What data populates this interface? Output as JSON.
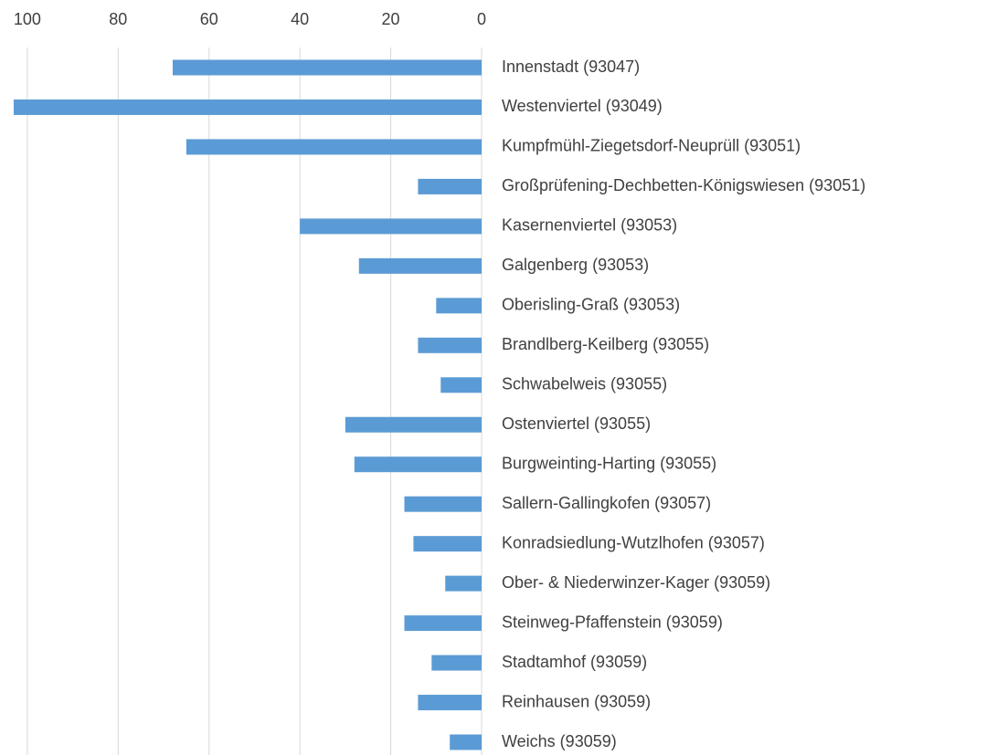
{
  "chart_data": {
    "type": "bar",
    "orientation": "horizontal",
    "x_reversed": true,
    "categories": [
      "Innenstadt (93047)",
      "Westenviertel (93049)",
      "Kumpfmühl-Ziegetsdorf-Neuprüll (93051)",
      "Großprüfening-Dechbetten-Königswiesen (93051)",
      "Kasernenviertel (93053)",
      "Galgenberg (93053)",
      "Oberisling-Graß (93053)",
      "Brandlberg-Keilberg (93055)",
      "Schwabelweis (93055)",
      "Ostenviertel (93055)",
      "Burgweinting-Harting (93055)",
      "Sallern-Gallingkofen (93057)",
      "Konradsiedlung-Wutzlhofen (93057)",
      "Ober- & Niederwinzer-Kager (93059)",
      "Steinweg-Pfaffenstein (93059)",
      "Stadtamhof (93059)",
      "Reinhausen (93059)",
      "Weichs (93059)"
    ],
    "values": [
      68,
      103,
      65,
      14,
      40,
      27,
      10,
      14,
      9,
      30,
      28,
      17,
      15,
      8,
      17,
      11,
      14,
      7
    ],
    "color": "#5b9bd5",
    "xlim": [
      0,
      104
    ],
    "xticks": [
      0,
      20,
      40,
      60,
      80,
      100
    ],
    "grid": true
  }
}
